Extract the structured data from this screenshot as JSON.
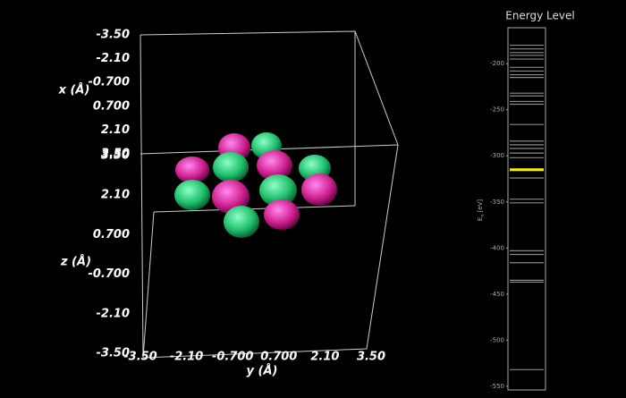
{
  "chart_data": [
    {
      "type": "orbital3d",
      "x_label": "x (Å)",
      "y_label": "y (Å)",
      "z_label": "z (Å)",
      "xlim": [
        -3.5,
        3.5
      ],
      "ylim": [
        -3.5,
        3.5
      ],
      "zlim": [
        -3.5,
        3.5
      ],
      "xticks": [
        {
          "value": -3.5,
          "label": "-3.50"
        },
        {
          "value": -2.1,
          "label": "-2.10"
        },
        {
          "value": -0.7,
          "label": "-0.700"
        },
        {
          "value": 0.7,
          "label": "0.700"
        },
        {
          "value": 2.1,
          "label": "2.10"
        },
        {
          "value": 3.5,
          "label": "3.50"
        }
      ],
      "yticks": [
        {
          "value": -3.5,
          "label": "-3.50"
        },
        {
          "value": -2.1,
          "label": "-2.10"
        },
        {
          "value": -0.7,
          "label": "-0.700"
        },
        {
          "value": 0.7,
          "label": "0.700"
        },
        {
          "value": 2.1,
          "label": "2.10"
        },
        {
          "value": 3.5,
          "label": "3.50"
        }
      ],
      "zticks": [
        {
          "value": 3.5,
          "label": "3.50"
        },
        {
          "value": 2.1,
          "label": "2.10"
        },
        {
          "value": 0.7,
          "label": "0.700"
        },
        {
          "value": -0.7,
          "label": "-0.700"
        },
        {
          "value": -2.1,
          "label": "-2.10"
        },
        {
          "value": -3.5,
          "label": "-3.50"
        }
      ]
    },
    {
      "type": "levels",
      "title": "Energy Level",
      "y_label": {
        "symbol": "E",
        "subscript": "n",
        "unit": "[eV]"
      },
      "ylim": [
        -554,
        -161
      ],
      "yticks": [
        -200,
        -250,
        -300,
        -350,
        -400,
        -450,
        -500,
        -550
      ],
      "color": "#8a8a8a",
      "highlight_color": "#f2f200",
      "highlighted": 19,
      "values": [
        -180,
        -184,
        -188,
        -191,
        -195,
        -204,
        -208,
        -212,
        -215,
        -232,
        -235,
        -241,
        -244,
        -266,
        -284,
        -288,
        -292,
        -297,
        -302,
        -315,
        -324,
        -347,
        -351,
        -403,
        -407,
        -416,
        -435,
        -437,
        -532
      ]
    }
  ]
}
